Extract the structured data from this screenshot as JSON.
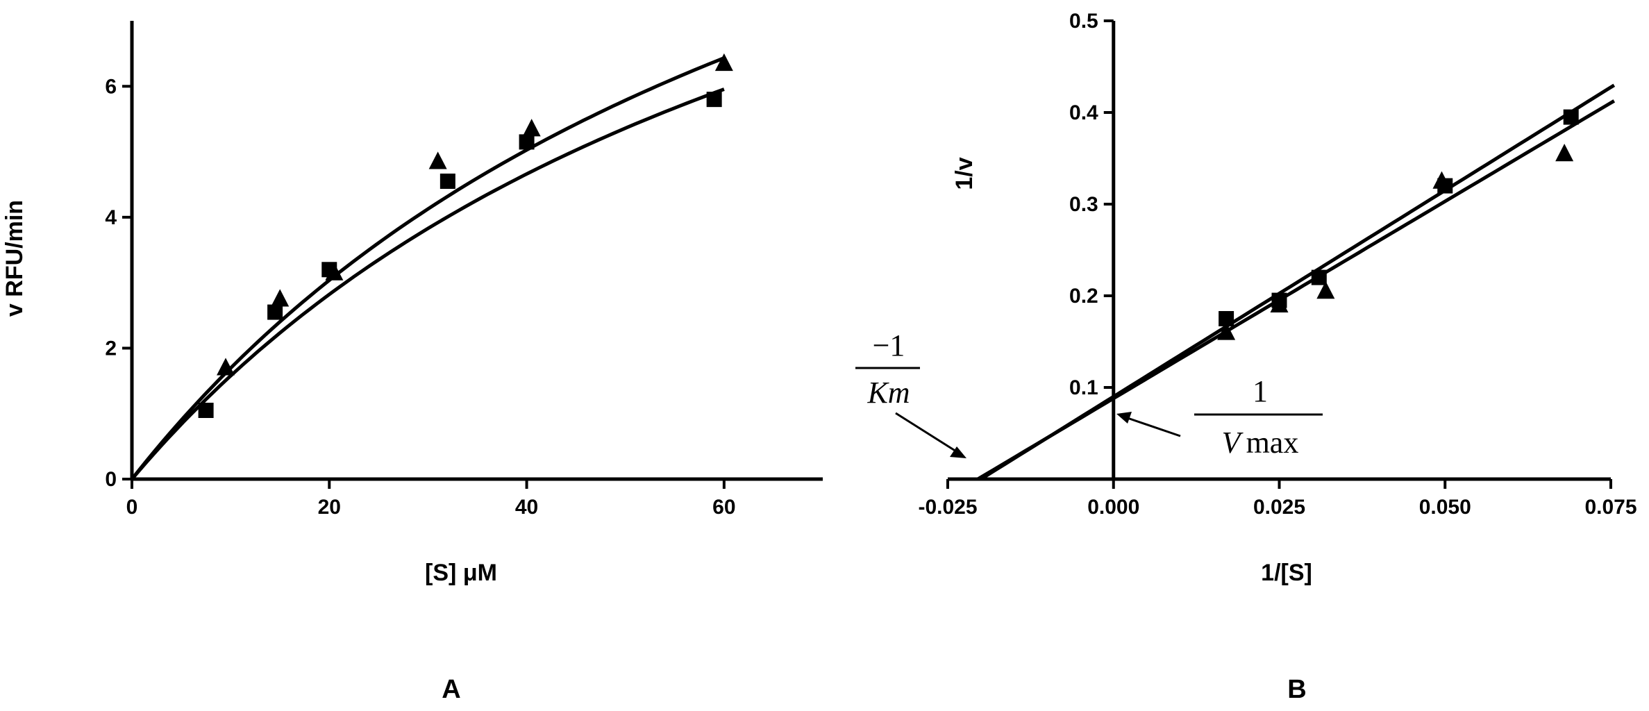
{
  "chart_data": [
    {
      "type": "scatter",
      "panel": "A",
      "xlabel": "[S] μM",
      "ylabel": "v RFU/min",
      "xlim": [
        0,
        70
      ],
      "ylim": [
        0,
        7
      ],
      "xticks": [
        "0",
        "20",
        "40",
        "60"
      ],
      "yticks": [
        "0",
        "2",
        "4",
        "6"
      ],
      "grid": false,
      "legend": "none",
      "series": [
        {
          "marker": "square",
          "x": [
            7.5,
            14.5,
            20,
            32,
            40,
            59
          ],
          "y": [
            1.05,
            2.55,
            3.2,
            4.55,
            5.15,
            5.8
          ],
          "fit": {
            "model": "michaelis-menten",
            "vmax": 13.4,
            "km": 75,
            "x_range": [
              0,
              60
            ]
          }
        },
        {
          "marker": "triangle",
          "x": [
            9.5,
            15,
            20.5,
            31,
            40.5,
            60
          ],
          "y": [
            1.7,
            2.75,
            3.15,
            4.85,
            5.35,
            6.35
          ],
          "fit": {
            "model": "michaelis-menten",
            "vmax": 14.58,
            "km": 76,
            "x_range": [
              0,
              60
            ]
          }
        }
      ]
    },
    {
      "type": "scatter",
      "panel": "B",
      "xlabel": "1/[S]",
      "ylabel": "1/v",
      "xlim": [
        -0.025,
        0.075
      ],
      "ylim": [
        0,
        0.5
      ],
      "xticks": [
        "-0.025",
        "0.000",
        "0.025",
        "0.050",
        "0.075"
      ],
      "yticks": [
        "0.1",
        "0.2",
        "0.3",
        "0.4",
        "0.5"
      ],
      "grid": false,
      "legend": "none",
      "series": [
        {
          "marker": "square",
          "x": [
            0.017,
            0.025,
            0.031,
            0.05,
            0.069
          ],
          "y": [
            0.175,
            0.195,
            0.22,
            0.32,
            0.395
          ],
          "fit": {
            "model": "linear",
            "slope": 4.5,
            "intercept": 0.09,
            "x_range": [
              -0.02,
              0.0755
            ]
          }
        },
        {
          "marker": "triangle",
          "x": [
            0.017,
            0.025,
            0.032,
            0.0495,
            0.068
          ],
          "y": [
            0.16,
            0.19,
            0.205,
            0.325,
            0.355
          ],
          "fit": {
            "model": "linear",
            "slope": 4.3,
            "intercept": 0.088,
            "x_range": [
              -0.0205,
              0.0755
            ]
          }
        }
      ],
      "annotations": {
        "km_numerator": "−1",
        "km_denominator": "Km",
        "vmax_numerator": "1",
        "vmax_denominator_v": "V",
        "vmax_denominator_rest": "max"
      }
    }
  ],
  "panel_labels": [
    "A",
    "B"
  ]
}
